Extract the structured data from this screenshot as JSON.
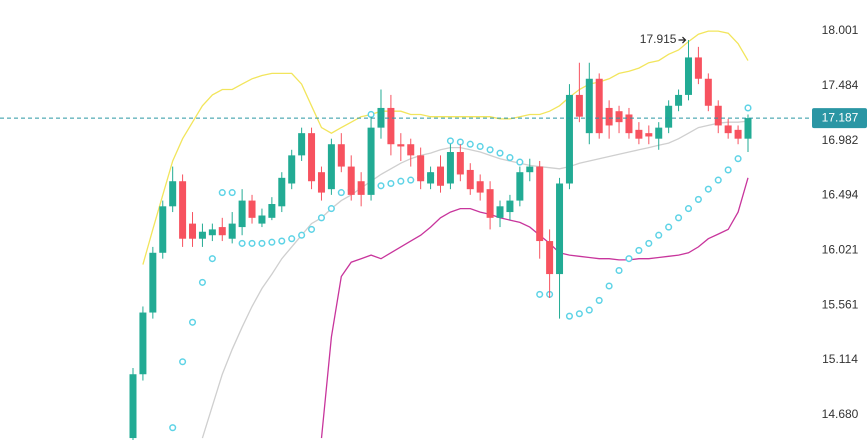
{
  "chart_data": {
    "type": "candlestick",
    "log_scale": true,
    "ylim": [
      14.485,
      18.3
    ],
    "yticks": [
      {
        "value": 14.68,
        "label": "14.680"
      },
      15.114,
      15.561,
      16.021,
      16.494,
      16.982,
      17.484,
      18.001
    ],
    "open": [
      14.5,
      15.0,
      15.5,
      16.0,
      16.4,
      16.62,
      16.25,
      16.12,
      16.15,
      16.22,
      16.12,
      16.22,
      16.45,
      16.25,
      16.3,
      16.4,
      16.6,
      16.85,
      17.05,
      16.7,
      16.55,
      16.95,
      16.75,
      16.62,
      16.5,
      17.1,
      17.28,
      16.95,
      16.95,
      16.85,
      16.6,
      16.75,
      16.6,
      16.88,
      16.72,
      16.62,
      16.55,
      16.3,
      16.35,
      16.45,
      16.7,
      16.75,
      16.1,
      15.82,
      16.6,
      17.4,
      17.05,
      17.55,
      17.28,
      17.25,
      17.22,
      17.08,
      17.05,
      17.0,
      17.1,
      17.3,
      17.4,
      17.75,
      17.55,
      17.3,
      17.12,
      17.08,
      17.0
    ],
    "high": [
      15.05,
      15.55,
      16.05,
      16.45,
      16.75,
      16.68,
      16.35,
      16.25,
      16.25,
      16.3,
      16.35,
      16.55,
      16.5,
      16.38,
      16.48,
      16.7,
      16.9,
      17.1,
      17.1,
      16.75,
      17.0,
      17.05,
      16.85,
      16.7,
      17.2,
      17.45,
      17.4,
      17.05,
      17.0,
      16.92,
      16.75,
      16.85,
      16.95,
      16.95,
      16.78,
      16.68,
      16.62,
      16.45,
      16.5,
      16.75,
      16.82,
      16.8,
      16.2,
      16.65,
      17.5,
      17.7,
      17.7,
      17.6,
      17.35,
      17.3,
      17.28,
      17.15,
      17.12,
      17.15,
      17.35,
      17.45,
      17.915,
      17.85,
      17.6,
      17.35,
      17.18,
      17.12,
      17.22
    ],
    "low": [
      14.45,
      14.95,
      15.45,
      15.95,
      16.35,
      16.05,
      16.05,
      16.05,
      16.1,
      16.1,
      16.08,
      16.15,
      16.25,
      16.22,
      16.28,
      16.35,
      16.55,
      16.8,
      16.55,
      16.45,
      16.5,
      16.7,
      16.45,
      16.4,
      16.45,
      17.0,
      16.85,
      16.8,
      16.75,
      16.55,
      16.55,
      16.52,
      16.55,
      16.62,
      16.5,
      16.45,
      16.2,
      16.22,
      16.28,
      16.4,
      16.62,
      15.95,
      15.62,
      15.45,
      16.55,
      17.15,
      16.95,
      17.0,
      17.0,
      17.05,
      17.0,
      16.95,
      16.95,
      16.9,
      17.05,
      17.25,
      17.35,
      17.5,
      17.25,
      17.05,
      17.0,
      16.95,
      16.88
    ],
    "close": [
      15.0,
      15.5,
      16.0,
      16.4,
      16.62,
      16.12,
      16.12,
      16.18,
      16.2,
      16.15,
      16.25,
      16.45,
      16.3,
      16.32,
      16.42,
      16.65,
      16.85,
      17.05,
      16.62,
      16.52,
      16.95,
      16.75,
      16.5,
      16.5,
      17.1,
      17.28,
      16.95,
      16.93,
      16.85,
      16.62,
      16.7,
      16.58,
      16.88,
      16.68,
      16.55,
      16.52,
      16.3,
      16.4,
      16.45,
      16.7,
      16.75,
      16.1,
      15.82,
      16.6,
      17.4,
      17.2,
      17.55,
      17.05,
      17.12,
      17.15,
      17.05,
      17.0,
      17.02,
      17.1,
      17.3,
      17.4,
      17.75,
      17.55,
      17.3,
      17.12,
      17.05,
      17.0,
      17.187
    ],
    "up_color": "#22ab94",
    "down_color": "#f7525f",
    "lines": [
      {
        "color": "#f2e55c",
        "values": [
          null,
          15.9,
          16.2,
          16.5,
          16.8,
          17.0,
          17.15,
          17.3,
          17.4,
          17.45,
          17.45,
          17.5,
          17.55,
          17.58,
          17.6,
          17.6,
          17.6,
          17.5,
          17.3,
          17.1,
          17.05,
          17.1,
          17.15,
          17.2,
          17.22,
          17.25,
          17.25,
          17.25,
          17.22,
          17.22,
          17.2,
          17.2,
          17.2,
          17.2,
          17.2,
          17.2,
          17.2,
          17.18,
          17.18,
          17.2,
          17.22,
          17.22,
          17.25,
          17.3,
          17.38,
          17.45,
          17.5,
          17.52,
          17.55,
          17.6,
          17.62,
          17.65,
          17.7,
          17.72,
          17.78,
          17.82,
          17.9,
          17.97,
          18.0,
          18.0,
          17.98,
          17.88,
          17.72
        ]
      },
      {
        "color": "#cfcfcf",
        "values": [
          null,
          null,
          null,
          null,
          null,
          null,
          null,
          14.5,
          14.75,
          15.0,
          15.2,
          15.38,
          15.55,
          15.7,
          15.82,
          15.95,
          16.05,
          16.15,
          16.25,
          16.3,
          16.38,
          16.45,
          16.5,
          16.56,
          16.62,
          16.68,
          16.73,
          16.78,
          16.82,
          16.85,
          16.87,
          16.9,
          16.92,
          16.92,
          16.9,
          16.88,
          16.85,
          16.82,
          16.8,
          16.78,
          16.76,
          16.75,
          16.74,
          16.73,
          16.75,
          16.78,
          16.8,
          16.82,
          16.84,
          16.86,
          16.88,
          16.9,
          16.92,
          16.94,
          16.96,
          17.0,
          17.05,
          17.1,
          17.12,
          17.14,
          17.15,
          17.15,
          17.16
        ]
      },
      {
        "color": "#c8359c",
        "values": [
          null,
          null,
          null,
          null,
          null,
          null,
          null,
          null,
          null,
          null,
          null,
          null,
          null,
          null,
          null,
          null,
          null,
          null,
          null,
          14.5,
          15.3,
          15.8,
          15.92,
          15.95,
          15.98,
          15.95,
          16.0,
          16.05,
          16.1,
          16.15,
          16.22,
          16.3,
          16.35,
          16.38,
          16.38,
          16.35,
          16.33,
          16.3,
          16.28,
          16.26,
          16.22,
          16.15,
          16.08,
          16.0,
          15.98,
          15.97,
          15.96,
          15.95,
          15.95,
          15.94,
          15.94,
          15.95,
          15.95,
          15.96,
          15.97,
          15.98,
          16.0,
          16.05,
          16.12,
          16.16,
          16.2,
          16.35,
          16.65
        ]
      }
    ],
    "dots": {
      "color": "#5ed3e6",
      "values": [
        null,
        null,
        null,
        null,
        14.58,
        15.1,
        15.42,
        15.75,
        15.95,
        16.52,
        16.52,
        16.08,
        16.08,
        16.08,
        16.09,
        16.1,
        16.12,
        16.15,
        16.2,
        16.3,
        16.38,
        16.52,
        16.54,
        16.55,
        17.22,
        16.58,
        16.6,
        16.62,
        16.63,
        16.65,
        16.67,
        16.7,
        16.98,
        16.97,
        16.95,
        16.93,
        16.9,
        16.87,
        16.83,
        16.79,
        null,
        15.65,
        15.65,
        null,
        15.47,
        15.49,
        15.52,
        15.6,
        15.72,
        15.85,
        15.95,
        16.02,
        16.08,
        16.15,
        16.22,
        16.3,
        16.38,
        16.46,
        16.55,
        16.63,
        16.72,
        16.82,
        17.28
      ]
    },
    "last_price": 17.187,
    "last_price_color": "#2a96a4",
    "max_marker": 17.915
  }
}
